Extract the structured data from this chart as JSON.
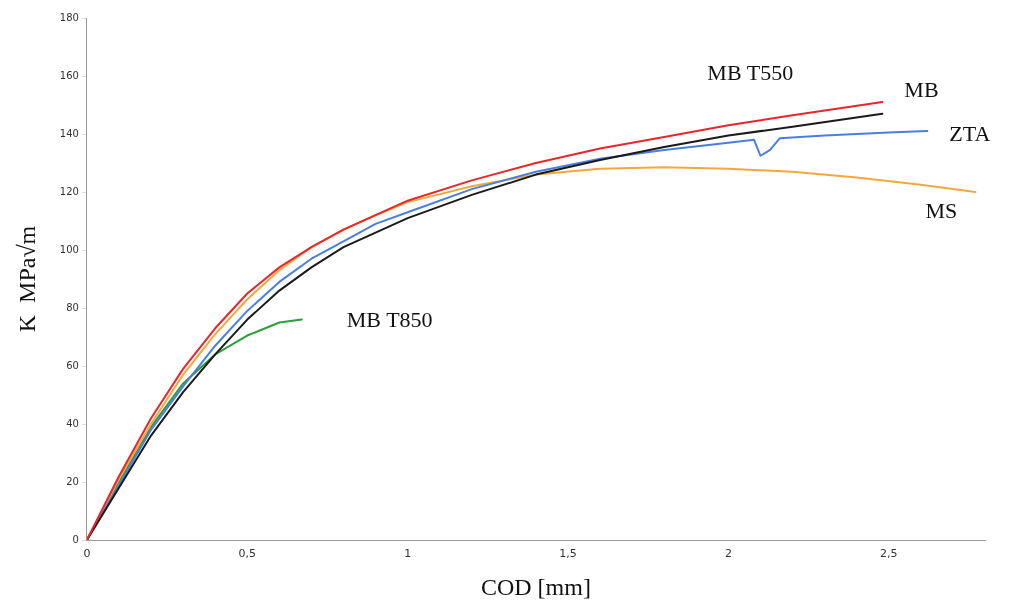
{
  "chart_data": {
    "type": "line",
    "xlabel": "COD [mm]",
    "ylabel": "K  MPa√m",
    "xlim": [
      0,
      2.8
    ],
    "xticks": [
      0,
      {
        "value": 0.5,
        "label": "0,5"
      },
      1,
      {
        "value": 1.5,
        "label": "1,5"
      },
      2,
      {
        "value": 2.5,
        "label": "2,5"
      }
    ],
    "ylim": [
      0,
      180
    ],
    "yticks": [
      0,
      20,
      40,
      60,
      80,
      100,
      120,
      140,
      160,
      180
    ],
    "grid": false,
    "legend": false,
    "marker": "none",
    "line_style": "solid",
    "series": [
      {
        "name": "MB T550",
        "color": "#e8262b",
        "x": [
          0,
          0.1,
          0.2,
          0.3,
          0.4,
          0.5,
          0.6,
          0.7,
          0.8,
          0.9,
          1.0,
          1.2,
          1.4,
          1.6,
          1.8,
          2.0,
          2.2,
          2.48
        ],
        "values": [
          0,
          22,
          42,
          59,
          73,
          85,
          94,
          101,
          107,
          112,
          117,
          124,
          130,
          135,
          139,
          143,
          146.5,
          151
        ]
      },
      {
        "name": "MB",
        "color": "#1a1a1a",
        "x": [
          0,
          0.1,
          0.2,
          0.3,
          0.4,
          0.5,
          0.6,
          0.7,
          0.8,
          0.9,
          1.0,
          1.2,
          1.4,
          1.6,
          1.8,
          2.0,
          2.2,
          2.48
        ],
        "values": [
          0,
          18,
          36,
          51,
          64,
          76,
          86,
          94,
          101,
          106,
          111,
          119,
          126,
          131,
          135.5,
          139.5,
          142.5,
          147
        ]
      },
      {
        "name": "ZTA",
        "color": "#4a7fe0",
        "x": [
          0,
          0.1,
          0.2,
          0.3,
          0.4,
          0.5,
          0.6,
          0.7,
          0.8,
          0.9,
          1.0,
          1.2,
          1.4,
          1.6,
          1.8,
          2.0,
          2.08,
          2.1,
          2.13,
          2.16,
          2.3,
          2.5,
          2.62
        ],
        "values": [
          0,
          19,
          38,
          53,
          67,
          79,
          89,
          97,
          103,
          109,
          113,
          121,
          127,
          131.5,
          134.5,
          137,
          138,
          132.5,
          134.5,
          138.5,
          139.5,
          140.5,
          141
        ]
      },
      {
        "name": "MS",
        "color": "#f2a93b",
        "x": [
          0,
          0.1,
          0.2,
          0.3,
          0.4,
          0.5,
          0.6,
          0.7,
          0.8,
          0.9,
          1.0,
          1.2,
          1.4,
          1.6,
          1.8,
          2.0,
          2.2,
          2.4,
          2.6,
          2.77
        ],
        "values": [
          0,
          21,
          40,
          57,
          71,
          83,
          93,
          101,
          107,
          112,
          116.5,
          122,
          126,
          128,
          128.5,
          128,
          127,
          125,
          122.5,
          120
        ]
      },
      {
        "name": "MB T850",
        "color": "#2e9e3a",
        "x": [
          0,
          0.1,
          0.2,
          0.3,
          0.4,
          0.5,
          0.6,
          0.67
        ],
        "values": [
          0,
          20,
          39,
          54,
          64,
          70.5,
          75,
          76
        ]
      }
    ]
  }
}
